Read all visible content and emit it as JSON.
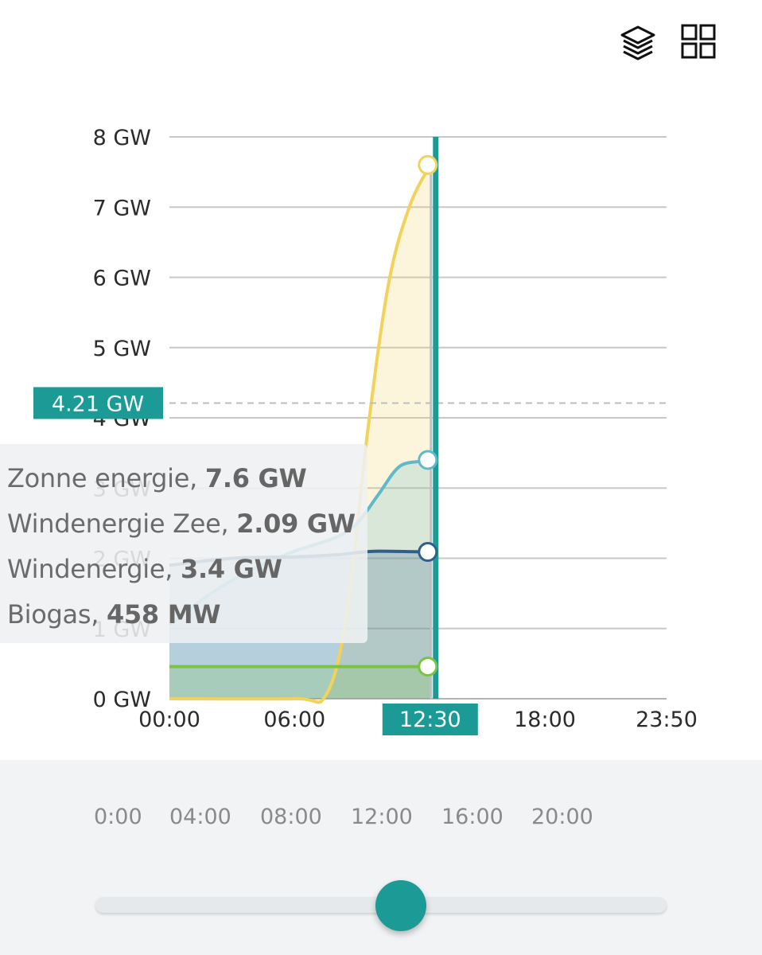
{
  "toolbar": {
    "layers_icon": "layers-icon",
    "grid_icon": "grid-view-icon"
  },
  "colors": {
    "accent": "#1b9a96",
    "solar": "#f2d25a",
    "wind_sea": "#5fb8cc",
    "wind": "#2f5f8f",
    "biogas": "#7cc243",
    "gridline": "#c8c8c8"
  },
  "chart_data": {
    "type": "area",
    "y_ticks": [
      "0 GW",
      "1 GW",
      "2 GW",
      "3 GW",
      "4 GW",
      "5 GW",
      "6 GW",
      "7 GW",
      "8 GW"
    ],
    "x_ticks": [
      "00:00",
      "06:00",
      "12:00",
      "18:00",
      "23:50"
    ],
    "ylim": [
      0,
      8
    ],
    "xlim": [
      "00:00",
      "23:50"
    ],
    "cursor_time": "12:30",
    "cursor_value_label": "4.21 GW",
    "cursor_value": 4.21,
    "grid": true,
    "series": [
      {
        "key": "solar",
        "name": "Zonne energie",
        "display_value": "7.6 GW",
        "x": [
          "00:00",
          "06:00",
          "07:30",
          "08:30",
          "09:30",
          "10:30",
          "11:30",
          "12:30"
        ],
        "values": [
          0,
          0,
          0.05,
          1.2,
          3.8,
          5.9,
          7.0,
          7.6
        ]
      },
      {
        "key": "wind_sea",
        "name": "Windenergie",
        "display_value": "3.4 GW",
        "x": [
          "00:00",
          "02:00",
          "04:00",
          "06:00",
          "08:00",
          "09:00",
          "10:00",
          "11:00",
          "12:00",
          "12:30"
        ],
        "values": [
          1.05,
          1.5,
          1.85,
          2.1,
          2.3,
          2.5,
          2.9,
          3.3,
          3.38,
          3.4
        ]
      },
      {
        "key": "wind",
        "name": "Windenergie Zee",
        "display_value": "2.09 GW",
        "x": [
          "00:00",
          "03:00",
          "06:00",
          "08:00",
          "09:00",
          "10:00",
          "12:30"
        ],
        "values": [
          1.9,
          2.0,
          2.02,
          2.05,
          2.08,
          2.1,
          2.09
        ]
      },
      {
        "key": "biogas",
        "name": "Biogas",
        "display_value": "458 MW",
        "x": [
          "00:00",
          "06:00",
          "12:30"
        ],
        "values": [
          0.458,
          0.458,
          0.458
        ]
      }
    ]
  },
  "tooltip": {
    "rows": [
      {
        "name": "Zonne energie",
        "value": "7.6 GW"
      },
      {
        "name": "Windenergie Zee",
        "value": "2.09 GW"
      },
      {
        "name": "Windenergie",
        "value": "3.4 GW"
      },
      {
        "name": "Biogas",
        "value": "458 MW"
      }
    ]
  },
  "timeline": {
    "labels": [
      "0:00",
      "04:00",
      "08:00",
      "12:00",
      "16:00",
      "20:00"
    ],
    "slider_fraction": 0.5
  }
}
